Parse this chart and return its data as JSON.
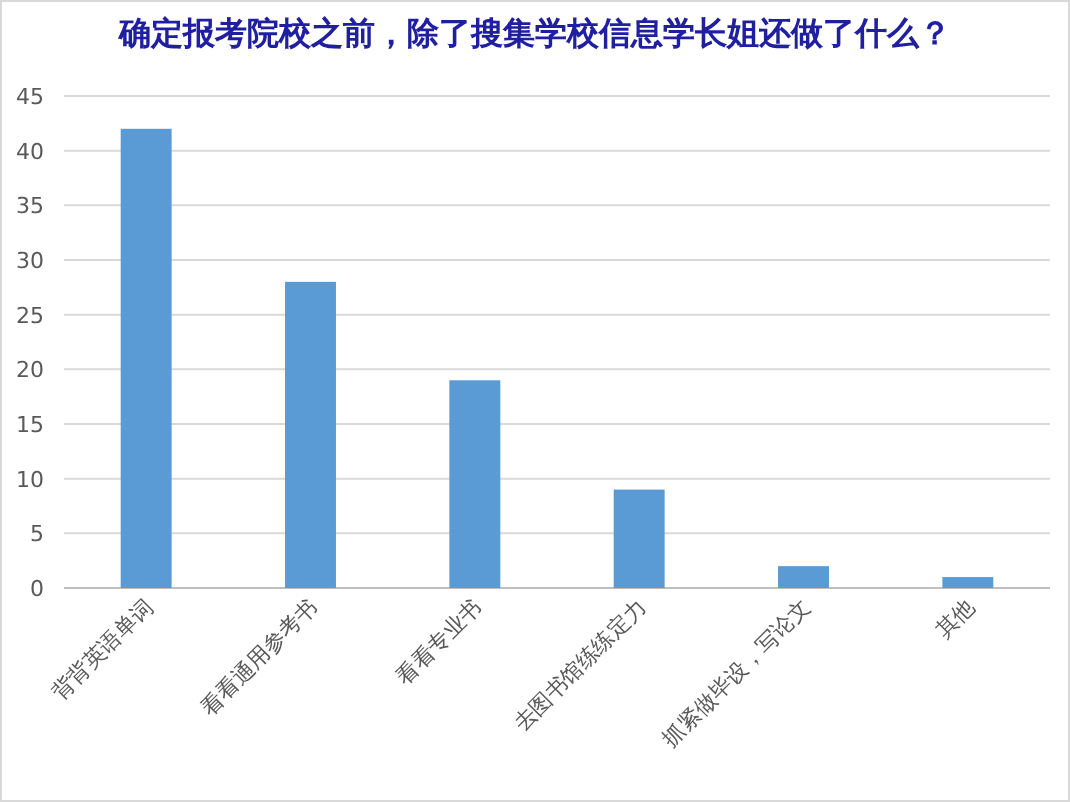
{
  "chart_data": {
    "type": "bar",
    "title": "确定报考院校之前，除了搜集学校信息学长姐还做了什么？",
    "categories": [
      "背背英语单词",
      "看看通用参考书",
      "看看专业书",
      "去图书馆练练定力",
      "抓紧做毕设，写论文",
      "其他"
    ],
    "values": [
      42,
      28,
      19,
      9,
      2,
      1
    ],
    "color": "#5b9bd5",
    "ylim": [
      0,
      45
    ],
    "yticks": [
      0,
      5,
      10,
      15,
      20,
      25,
      30,
      35,
      40,
      45
    ],
    "grid": "y"
  }
}
